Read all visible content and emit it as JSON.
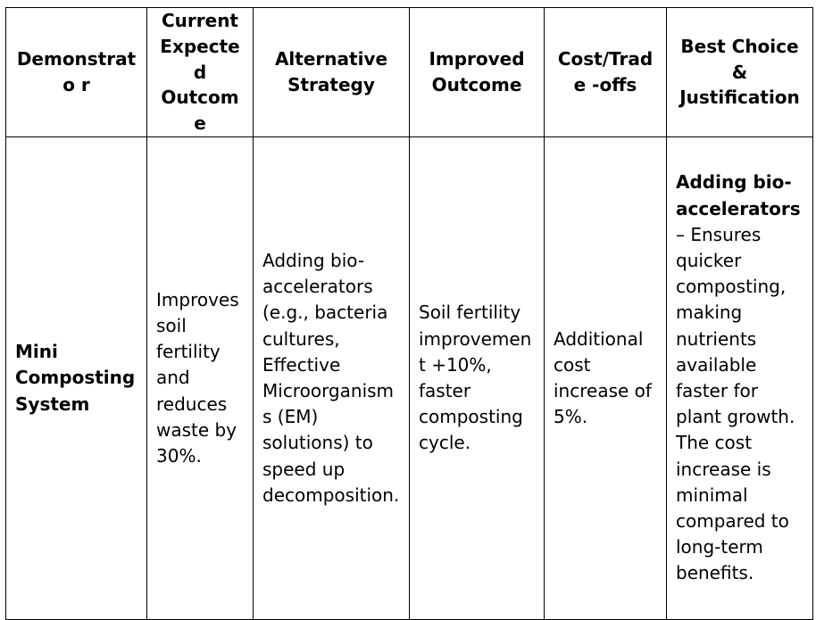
{
  "table": {
    "headers": [
      "Demonstrato r",
      "Current Expected Outcome",
      "Alternative Strategy",
      "Improved Outcome",
      "Cost/Trade -offs",
      "Best Choice & Justification"
    ],
    "rows": [
      {
        "demonstrator": "Mini Composting System",
        "current_outcome": "Improves soil fertility and reduces waste by 30%.",
        "alternative_strategy": "Adding bio-accelerators (e.g., bacteria cultures, Effective Microorganisms (EM) solutions) to speed up decomposition.",
        "improved_outcome": "Soil fertility improvement +10%, faster composting cycle.",
        "cost_tradeoffs": "Additional cost increase of 5%.",
        "best_choice_bold": "Adding bio-accelerators",
        "best_choice_rest": " – Ensures quicker composting, making nutrients available faster for plant growth. The cost increase is minimal compared to long-term benefits."
      }
    ]
  }
}
